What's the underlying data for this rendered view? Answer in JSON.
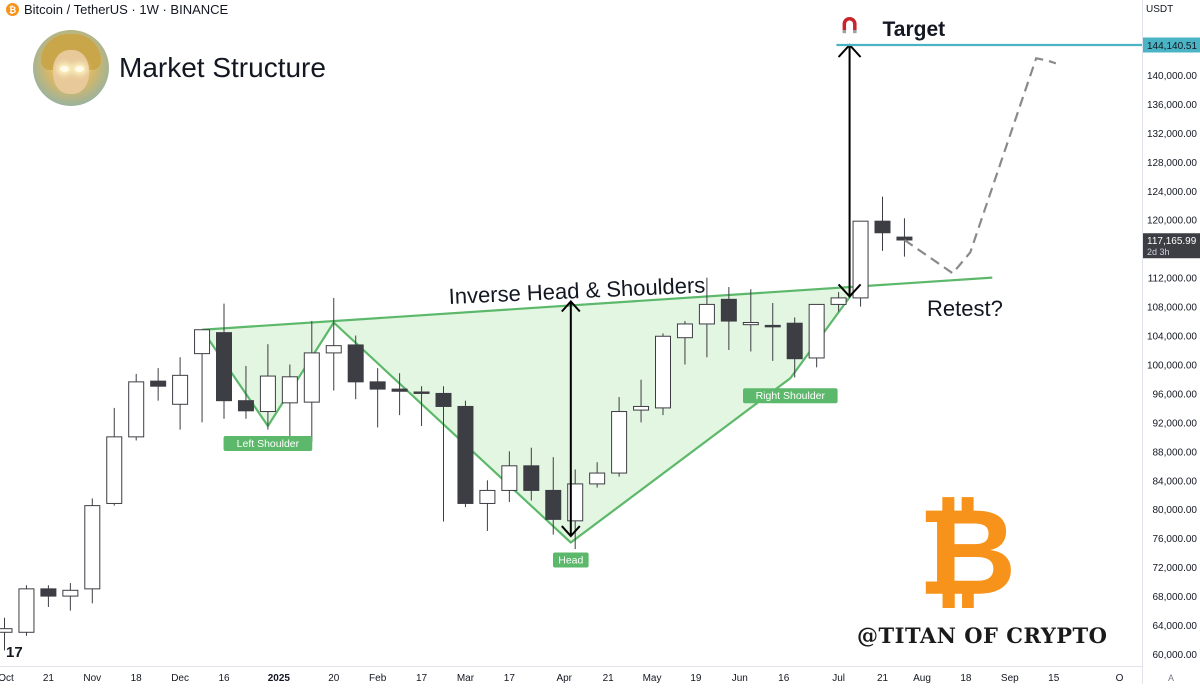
{
  "header": {
    "symbol": "Bitcoin / TetherUS · 1W · BINANCE",
    "title": "Market Structure",
    "currency": "USDT",
    "icon": "bitcoin-coin-icon"
  },
  "watermark": "@TITAN OF CRYPTO",
  "logo": "17",
  "chart_data": {
    "type": "candlestick",
    "title": "Market Structure",
    "ylim": [
      60000,
      145000
    ],
    "y_ticks": [
      "60,000.00",
      "64,000.00",
      "68,000.00",
      "72,000.00",
      "76,000.00",
      "80,000.00",
      "84,000.00",
      "88,000.00",
      "92,000.00",
      "96,000.00",
      "100,000.00",
      "104,000.00",
      "108,000.00",
      "112,000.00",
      "116,000.00",
      "120,000.00",
      "124,000.00",
      "128,000.00",
      "132,000.00",
      "136,000.00",
      "140,000.00"
    ],
    "y_tick_values": [
      60000,
      64000,
      68000,
      72000,
      76000,
      80000,
      84000,
      88000,
      92000,
      96000,
      100000,
      104000,
      108000,
      112000,
      116000,
      120000,
      124000,
      128000,
      132000,
      136000,
      140000
    ],
    "x_ticks": [
      "Oct",
      "21",
      "Nov",
      "18",
      "Dec",
      "16",
      "2025",
      "20",
      "Feb",
      "17",
      "Mar",
      "17",
      "Apr",
      "21",
      "May",
      "19",
      "Jun",
      "16",
      "Jul",
      "21",
      "Aug",
      "18",
      "Sep",
      "15",
      "O"
    ],
    "x_tick_index": [
      -0.3,
      2,
      4,
      6,
      8,
      10,
      12.5,
      15,
      17,
      19,
      21,
      23,
      25.5,
      27.5,
      29.5,
      31.5,
      33.5,
      35.5,
      38,
      40,
      41.8,
      43.8,
      45.8,
      47.8,
      50.8
    ],
    "candles": [
      {
        "o": 63000,
        "h": 65000,
        "l": 60500,
        "c": 63500
      },
      {
        "o": 63000,
        "h": 69500,
        "l": 62500,
        "c": 69000
      },
      {
        "o": 69000,
        "h": 69500,
        "l": 66500,
        "c": 68000
      },
      {
        "o": 68000,
        "h": 69800,
        "l": 66000,
        "c": 68800
      },
      {
        "o": 69000,
        "h": 81500,
        "l": 67000,
        "c": 80500
      },
      {
        "o": 80800,
        "h": 94000,
        "l": 80500,
        "c": 90000
      },
      {
        "o": 90000,
        "h": 98700,
        "l": 89500,
        "c": 97600
      },
      {
        "o": 97700,
        "h": 99500,
        "l": 95000,
        "c": 97000
      },
      {
        "o": 94500,
        "h": 101000,
        "l": 91000,
        "c": 98500
      },
      {
        "o": 101500,
        "h": 104000,
        "l": 92000,
        "c": 104800
      },
      {
        "o": 104400,
        "h": 108400,
        "l": 92500,
        "c": 95000
      },
      {
        "o": 95000,
        "h": 99800,
        "l": 92500,
        "c": 93600
      },
      {
        "o": 93500,
        "h": 102800,
        "l": 91000,
        "c": 98400
      },
      {
        "o": 94700,
        "h": 100000,
        "l": 89300,
        "c": 98300
      },
      {
        "o": 94800,
        "h": 106000,
        "l": 89300,
        "c": 101600
      },
      {
        "o": 101600,
        "h": 109200,
        "l": 96400,
        "c": 102600
      },
      {
        "o": 102700,
        "h": 104000,
        "l": 95200,
        "c": 97600
      },
      {
        "o": 97600,
        "h": 99500,
        "l": 91300,
        "c": 96600
      },
      {
        "o": 96600,
        "h": 98800,
        "l": 93000,
        "c": 96300
      },
      {
        "o": 96200,
        "h": 97000,
        "l": 91500,
        "c": 96000
      },
      {
        "o": 96000,
        "h": 97000,
        "l": 78300,
        "c": 94200
      },
      {
        "o": 94200,
        "h": 95000,
        "l": 80300,
        "c": 80800
      },
      {
        "o": 80800,
        "h": 84000,
        "l": 77000,
        "c": 82600
      },
      {
        "o": 82600,
        "h": 88000,
        "l": 81000,
        "c": 86000
      },
      {
        "o": 86000,
        "h": 88500,
        "l": 81200,
        "c": 82600
      },
      {
        "o": 82600,
        "h": 87200,
        "l": 76500,
        "c": 78600
      },
      {
        "o": 78400,
        "h": 85500,
        "l": 74500,
        "c": 83500
      },
      {
        "o": 83500,
        "h": 86500,
        "l": 83000,
        "c": 85000
      },
      {
        "o": 85000,
        "h": 95500,
        "l": 84500,
        "c": 93500
      },
      {
        "o": 93700,
        "h": 97900,
        "l": 92000,
        "c": 94200
      },
      {
        "o": 94000,
        "h": 104300,
        "l": 93000,
        "c": 103900
      },
      {
        "o": 103700,
        "h": 106000,
        "l": 100000,
        "c": 105600
      },
      {
        "o": 105600,
        "h": 112000,
        "l": 101000,
        "c": 108300
      },
      {
        "o": 109000,
        "h": 110700,
        "l": 102000,
        "c": 106000
      },
      {
        "o": 105500,
        "h": 110400,
        "l": 101800,
        "c": 105800
      },
      {
        "o": 105400,
        "h": 108500,
        "l": 100500,
        "c": 105200
      },
      {
        "o": 105700,
        "h": 106500,
        "l": 98200,
        "c": 100800
      },
      {
        "o": 100900,
        "h": 108000,
        "l": 99600,
        "c": 108300
      },
      {
        "o": 108300,
        "h": 110000,
        "l": 107300,
        "c": 109200
      },
      {
        "o": 109200,
        "h": 119500,
        "l": 108000,
        "c": 119800
      },
      {
        "o": 119800,
        "h": 123200,
        "l": 115700,
        "c": 118200
      },
      {
        "o": 117600,
        "h": 120200,
        "l": 114900,
        "c": 117200
      }
    ],
    "neckline": [
      {
        "i": 9,
        "y": 104800
      },
      {
        "i": 45,
        "y": 112000
      }
    ],
    "pattern_line": [
      {
        "i": 9,
        "y": 104800
      },
      {
        "i": 12,
        "y": 91500
      },
      {
        "i": 15,
        "y": 105800
      },
      {
        "i": 25.8,
        "y": 75400
      },
      {
        "i": 35.8,
        "y": 98100
      },
      {
        "i": 38.6,
        "y": 109700
      }
    ],
    "pattern_labels": [
      {
        "text": "Left Shoulder",
        "i": 12,
        "y": 91500
      },
      {
        "text": "Head",
        "i": 25.8,
        "y": 75400
      },
      {
        "text": "Right Shoulder",
        "i": 35.8,
        "y": 98100
      }
    ],
    "pattern_title": "Inverse Head & Shoulders",
    "head_arrow": {
      "i": 25.8,
      "from": 76300,
      "to": 108700
    },
    "target_arrow": {
      "i": 38.5,
      "from": 109400,
      "to": 144140.51
    },
    "target": {
      "label": "Target",
      "value": 144140.51,
      "value_label": "144,140.51"
    },
    "last_price": {
      "value": 117165.99,
      "value_label": "117,165.99",
      "countdown": "2d 3h"
    },
    "projection": [
      {
        "i": 41,
        "y": 117200
      },
      {
        "i": 43.2,
        "y": 112600
      },
      {
        "i": 44,
        "y": 115500
      },
      {
        "i": 47,
        "y": 142300
      },
      {
        "i": 47.5,
        "y": 142000
      },
      {
        "i": 47.9,
        "y": 141600
      }
    ],
    "retest_label": "Retest?",
    "colors": {
      "bull_candle": "#ffffff",
      "bear_candle": "#3d3d44",
      "pattern": "#5cb86a",
      "pattern_fill": "#e3f6e2",
      "target_line": "#4ab4c4",
      "bitcoin_logo": "#f7931a"
    },
    "grid": false
  }
}
